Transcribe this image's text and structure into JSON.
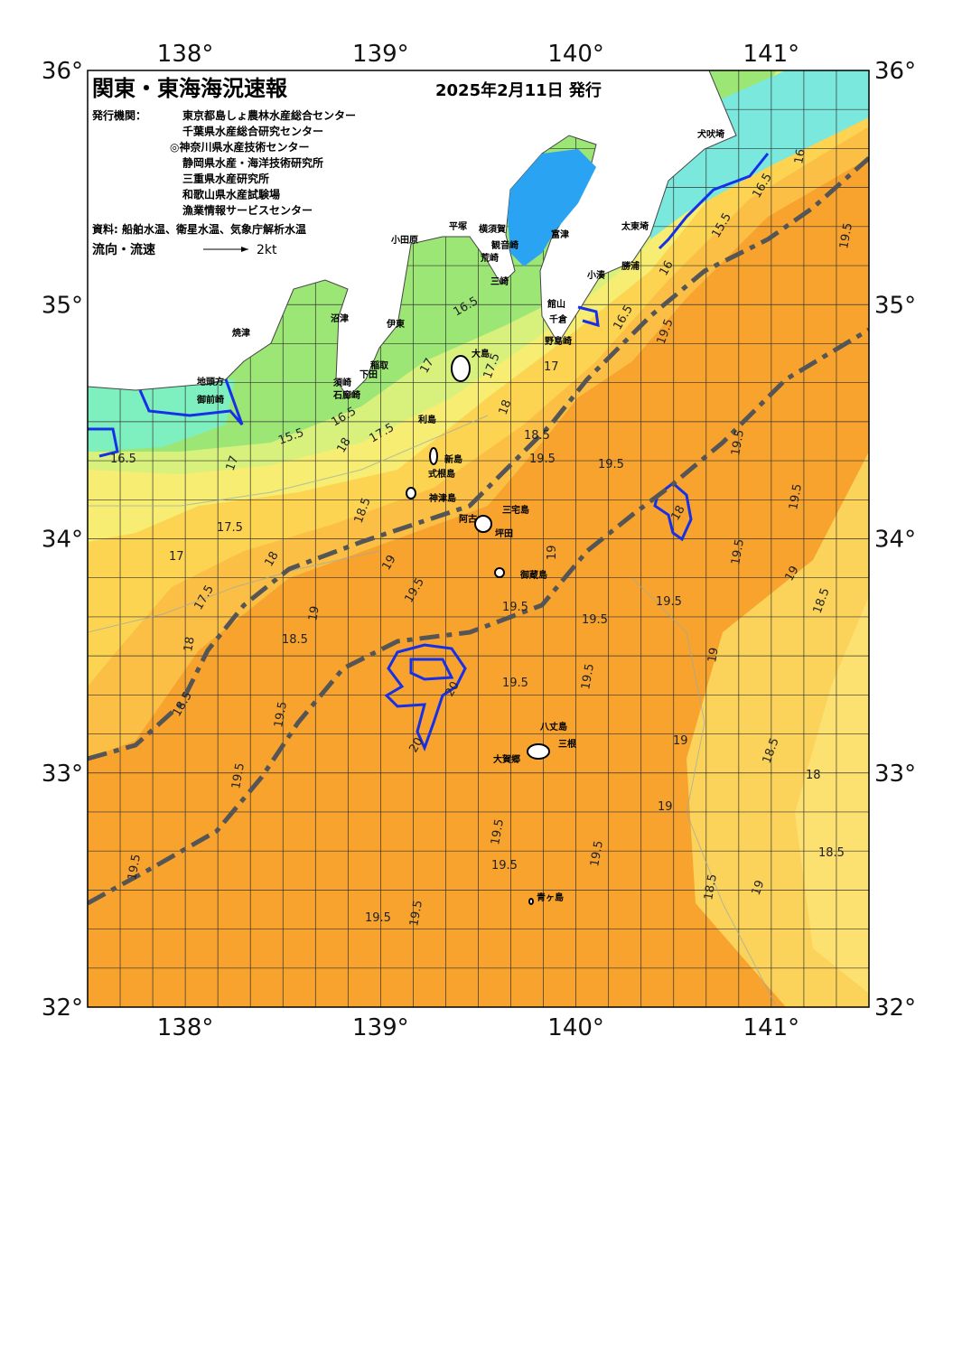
{
  "map": {
    "title": "関東・東海海況速報",
    "date": "2025年2月11日 発行",
    "agencies_label": "発行機関：",
    "agencies": [
      "東京都島しょ農林水産総合センター",
      "千葉県水産総合研究センター",
      "◎神奈川県水産技術センター",
      "静岡県水産・海洋技術研究所",
      "三重県水産研究所",
      "和歌山県水産試験場",
      "漁業情報サービスセンター"
    ],
    "source": "資料: 船舶水温、衛星水温、気象庁解析水温",
    "legend": {
      "label": "流向・流速",
      "scale": "2kt"
    },
    "xlim": [
      137.5,
      141.5
    ],
    "ylim": [
      32,
      36
    ],
    "xticks": [
      {
        "value": 138,
        "label": "138°"
      },
      {
        "value": 139,
        "label": "139°"
      },
      {
        "value": 140,
        "label": "140°"
      },
      {
        "value": 141,
        "label": "141°"
      }
    ],
    "yticks": [
      {
        "value": 32,
        "label": "32°"
      },
      {
        "value": 33,
        "label": "33°"
      },
      {
        "value": 34,
        "label": "34°"
      },
      {
        "value": 35,
        "label": "35°"
      },
      {
        "value": 36,
        "label": "36°"
      }
    ],
    "places": [
      "犬吠埼",
      "太東埼",
      "勝浦",
      "小湊",
      "館山",
      "千倉",
      "野島崎",
      "富津",
      "観音崎",
      "横須賀",
      "平塚",
      "小田原",
      "荒崎",
      "三崎",
      "沼津",
      "伊東",
      "大島",
      "稲取",
      "下田",
      "須崎",
      "石廊崎",
      "焼津",
      "地頭方",
      "御前崎",
      "利島",
      "新島",
      "式根島",
      "神津島",
      "阿古",
      "三宅島",
      "坪田",
      "御蔵島",
      "八丈島",
      "三根",
      "大賀郷",
      "青ヶ島"
    ],
    "contour_labels": [
      16.5,
      15.5,
      16.5,
      18,
      17.5,
      17,
      17.5,
      17,
      18.5,
      18,
      19,
      19.5,
      17.5,
      18,
      18.5,
      19,
      18.5,
      19.5,
      19.5,
      19.5,
      19.5,
      19.5,
      19.5,
      19.5,
      19.5,
      19.5,
      19.5,
      20,
      20,
      19.5,
      19.5,
      19.5,
      19,
      19.5,
      19.5,
      19.5,
      19.5,
      19.5,
      18.5,
      18,
      17.5,
      17,
      16.5,
      16.5,
      17,
      16,
      19.5,
      19.5,
      16.5,
      16,
      15.5,
      19,
      19,
      18.5,
      18,
      19,
      18.5,
      19,
      18.5,
      19,
      18.5,
      18
    ]
  }
}
